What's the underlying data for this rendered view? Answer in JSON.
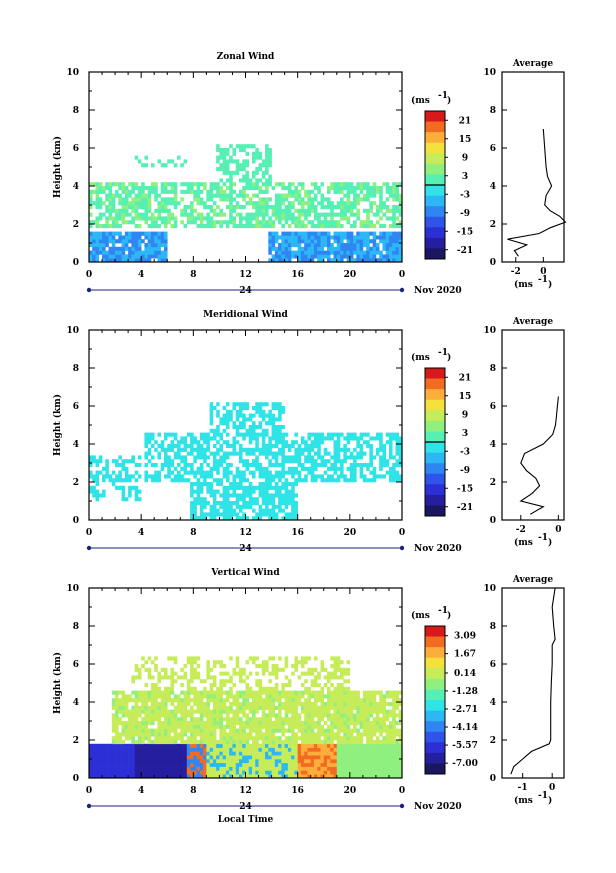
{
  "figure": {
    "date_label": "Nov 2020",
    "day_label": "24",
    "x_label": "Local Time",
    "y_label": "Height (km)",
    "units": "(ms",
    "units_exp": "-1",
    "avg_title": "Average"
  },
  "chart_data": [
    {
      "type": "heatmap",
      "title": "Zonal Wind",
      "xlabel": "Local Time",
      "ylabel": "Height (km)",
      "xlim": [
        0,
        24
      ],
      "ylim": [
        0,
        10
      ],
      "xticks": [
        "0",
        "4",
        "8",
        "12",
        "16",
        "20",
        "0"
      ],
      "yticks": [
        "0",
        "2",
        "4",
        "6",
        "8",
        "10"
      ],
      "colorbar": {
        "label": "(ms-1)",
        "range": [
          -24,
          24
        ],
        "ticks": [
          "21",
          "15",
          "9",
          "3",
          "-3",
          "-9",
          "-15",
          "-21"
        ],
        "tick_values": [
          21,
          15,
          9,
          3,
          -3,
          -9,
          -15,
          -21
        ],
        "mark_value": 0
      },
      "average_profile": {
        "title": "Average",
        "xlabel": "(ms-1)",
        "xlim": [
          -3,
          1.5
        ],
        "xticks": [
          "-2",
          "0"
        ],
        "tick_values": [
          -2,
          0
        ],
        "height_km": [
          0.3,
          0.6,
          0.9,
          1.2,
          1.5,
          1.8,
          2.1,
          2.4,
          2.7,
          3.0,
          3.5,
          4.0,
          4.5,
          5.0,
          6.0,
          7.0
        ],
        "wind_ms": [
          -1.8,
          -2.1,
          -1.2,
          -2.6,
          -0.3,
          0.5,
          1.6,
          1.2,
          0.5,
          0.1,
          0.2,
          0.6,
          0.3,
          0.2,
          0.1,
          0.0
        ]
      }
    },
    {
      "type": "heatmap",
      "title": "Meridional Wind",
      "xlabel": "Local Time",
      "ylabel": "Height (km)",
      "xlim": [
        0,
        24
      ],
      "ylim": [
        0,
        10
      ],
      "xticks": [
        "0",
        "4",
        "8",
        "12",
        "16",
        "20",
        "0"
      ],
      "yticks": [
        "0",
        "2",
        "4",
        "6",
        "8",
        "10"
      ],
      "colorbar": {
        "label": "(ms-1)",
        "range": [
          -24,
          24
        ],
        "ticks": [
          "21",
          "15",
          "9",
          "3",
          "-3",
          "-9",
          "-15",
          "-21"
        ],
        "tick_values": [
          21,
          15,
          9,
          3,
          -3,
          -9,
          -15,
          -21
        ],
        "mark_value": 0
      },
      "average_profile": {
        "title": "Average",
        "xlabel": "(ms-1)",
        "xlim": [
          -3,
          0.3
        ],
        "xticks": [
          "-2",
          "0"
        ],
        "tick_values": [
          -2,
          0
        ],
        "height_km": [
          0.3,
          0.7,
          1.0,
          1.4,
          1.8,
          2.2,
          2.6,
          3.0,
          3.5,
          4.0,
          4.5,
          5.0,
          5.5,
          6.0,
          6.5
        ],
        "wind_ms": [
          -1.5,
          -0.8,
          -2.0,
          -1.4,
          -1.0,
          -1.2,
          -1.7,
          -2.0,
          -1.8,
          -0.8,
          -0.3,
          -0.15,
          -0.1,
          -0.05,
          0.0
        ]
      }
    },
    {
      "type": "heatmap",
      "title": "Vertical Wind",
      "xlabel": "Local Time",
      "ylabel": "Height (km)",
      "xlim": [
        0,
        24
      ],
      "ylim": [
        0,
        10
      ],
      "xticks": [
        "0",
        "4",
        "8",
        "12",
        "16",
        "20",
        "0"
      ],
      "yticks": [
        "0",
        "2",
        "4",
        "6",
        "8",
        "10"
      ],
      "colorbar": {
        "label": "(ms-1)",
        "range": [
          -7.86,
          3.86
        ],
        "ticks": [
          "3.09",
          "1.67",
          "0.14",
          "-1.28",
          "-2.71",
          "-4.14",
          "-5.57",
          "-7.00"
        ],
        "tick_values": [
          3.09,
          1.67,
          0.14,
          -1.28,
          -2.71,
          -4.14,
          -5.57,
          -7.0
        ],
        "mark_value": null
      },
      "average_profile": {
        "title": "Average",
        "xlabel": "(ms-1)",
        "xlim": [
          -1.7,
          0.4
        ],
        "xticks": [
          "-1",
          "0"
        ],
        "tick_values": [
          -1,
          0
        ],
        "height_km": [
          0.2,
          0.6,
          1.0,
          1.4,
          1.8,
          2.0,
          3.0,
          4.0,
          5.0,
          6.0,
          7.0,
          7.3,
          8.0,
          9.0,
          10.0
        ],
        "wind_ms": [
          -1.4,
          -1.3,
          -1.0,
          -0.7,
          -0.1,
          -0.05,
          -0.05,
          -0.05,
          -0.03,
          0.0,
          0.0,
          0.1,
          0.05,
          0.0,
          0.1
        ]
      }
    }
  ]
}
